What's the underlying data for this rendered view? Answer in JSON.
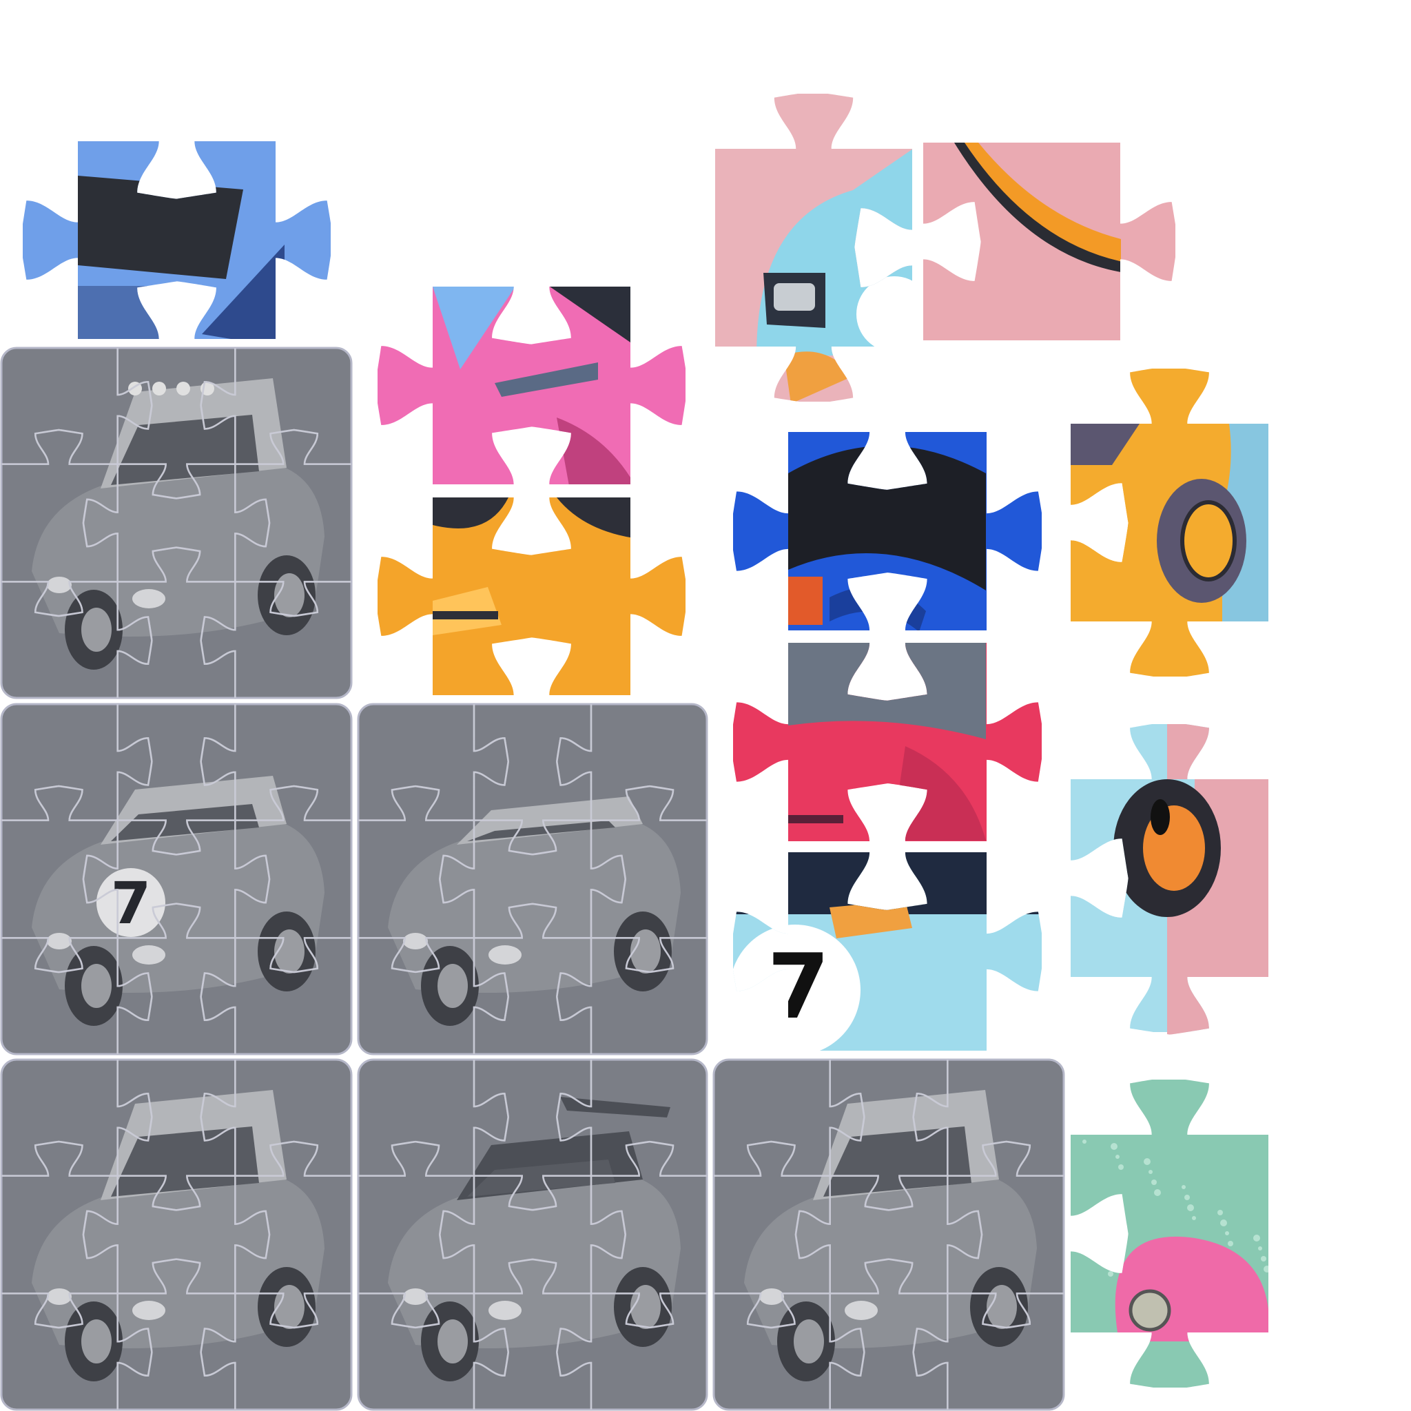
{
  "board": {
    "slot_fill": "#7b7e86",
    "slot_stroke": "#b5b7c8",
    "seam_color": "#c9cad6",
    "slots": [
      {
        "id": "slot-offroad-suv",
        "silhouette": "offroad SUV with roof rack and lights"
      },
      {
        "id": "slot-gt-racer-7",
        "silhouette": "GT race car number 7",
        "number": "7"
      },
      {
        "id": "slot-classic-roadster",
        "silhouette": "classic roadster"
      },
      {
        "id": "slot-jeep",
        "silhouette": "jeep"
      },
      {
        "id": "slot-supercar",
        "silhouette": "supercar with rear wing"
      },
      {
        "id": "slot-pickup-truck",
        "silhouette": "pickup truck"
      }
    ]
  },
  "pieces": [
    {
      "id": "blue-truck-piece",
      "desc": "blue truck windshield",
      "colors": [
        "#6f9fe9",
        "#2c2f36",
        "#2e4a8d"
      ]
    },
    {
      "id": "pink-car-top-piece",
      "desc": "pink car hood",
      "colors": [
        "#f06cb4",
        "#7fb6f0",
        "#2b2f3a"
      ]
    },
    {
      "id": "orange-hood-piece",
      "desc": "orange car hood vent",
      "colors": [
        "#f4a42a",
        "#2d2f38",
        "#ffc45a"
      ]
    },
    {
      "id": "light-blue-racer-headlight-piece",
      "desc": "light blue racer headlight on pink backdrop",
      "colors": [
        "#eab3ba",
        "#8fd6ea",
        "#2c3340"
      ]
    },
    {
      "id": "orange-stripe-on-pink-piece",
      "desc": "orange stripe on pink backdrop",
      "colors": [
        "#eaaab2",
        "#f39a26",
        "#2a2c33"
      ]
    },
    {
      "id": "blue-black-racer-piece",
      "desc": "blue and black racer roof",
      "colors": [
        "#2158d8",
        "#1d1f26",
        "#e25a2a"
      ]
    },
    {
      "id": "orange-car-wheel-piece",
      "desc": "orange car wheel on blue backdrop",
      "colors": [
        "#f4ab2e",
        "#5b5670",
        "#87c6e0"
      ]
    },
    {
      "id": "red-car-windshield-piece",
      "desc": "red car windshield",
      "colors": [
        "#e8395f",
        "#6b7584",
        "#c92f55"
      ]
    },
    {
      "id": "racer-number-7-piece",
      "desc": "light blue racer with number 7 roundel",
      "colors": [
        "#9fdbec",
        "#1f2a40",
        "#f0a040"
      ],
      "number": "7"
    },
    {
      "id": "light-blue-wheel-on-pink-piece",
      "desc": "light blue car wheel on pink backdrop",
      "colors": [
        "#a6ddec",
        "#e7a7b0",
        "#f08a32"
      ]
    },
    {
      "id": "pink-wheel-on-mint-piece",
      "desc": "pink wheel on mint backdrop",
      "colors": [
        "#89c9b2",
        "#ef6aa8",
        "#c0c0b0"
      ]
    }
  ]
}
